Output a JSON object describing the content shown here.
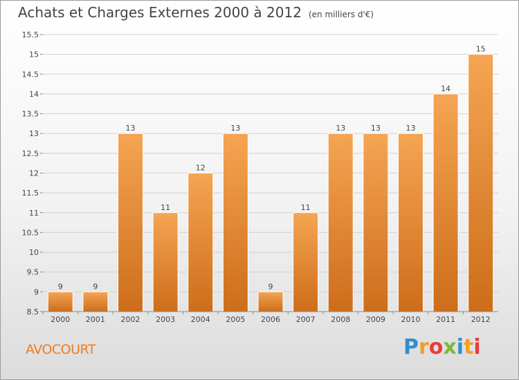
{
  "header": {
    "title": "Achats et Charges Externes 2000 à 2012",
    "unit": "(en milliers d'€)"
  },
  "footer": {
    "commune": "AVOCOURT",
    "logo": [
      "P",
      "r",
      "o",
      "x",
      "i",
      "t",
      "i"
    ]
  },
  "colors": {
    "bar_top": "#f5a553",
    "bar_bottom": "#cd6d1a",
    "grid": "#d0d0d0",
    "axis_text": "#444444",
    "commune": "#f07c21"
  },
  "chart_data": {
    "type": "bar",
    "title": "Achats et Charges Externes 2000 à 2012",
    "unit": "(en milliers d'€)",
    "categories": [
      "2000",
      "2001",
      "2002",
      "2003",
      "2004",
      "2005",
      "2006",
      "2007",
      "2008",
      "2009",
      "2010",
      "2011",
      "2012"
    ],
    "values": [
      9,
      9,
      13,
      11,
      12,
      13,
      9,
      11,
      13,
      13,
      13,
      14,
      15
    ],
    "ylim": [
      8.5,
      15.5
    ],
    "yticks": [
      8.5,
      9,
      9.5,
      10,
      10.5,
      11,
      11.5,
      12,
      12.5,
      13,
      13.5,
      14,
      14.5,
      15,
      15.5
    ],
    "ytick_labels": [
      "8.5",
      "9",
      "9.5",
      "10",
      "10.5",
      "11",
      "11.5",
      "12",
      "12.5",
      "13",
      "13.5",
      "14",
      "14.5",
      "15",
      "15.5"
    ],
    "grid": true,
    "legend": "none"
  }
}
